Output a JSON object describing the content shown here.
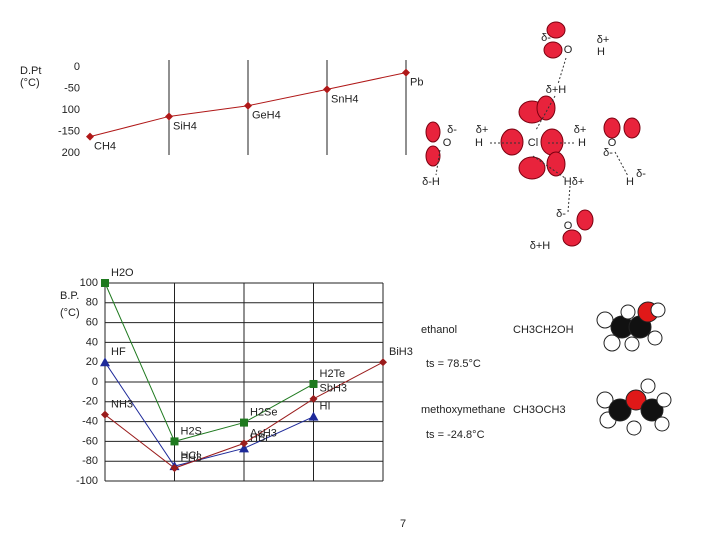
{
  "chart_data": [
    {
      "type": "line",
      "ylabel": [
        "D.Pt",
        "(°C)"
      ],
      "categories": [
        "CH4",
        "SiH4",
        "GeH4",
        "SnH4",
        "Pb"
      ],
      "values": [
        -162,
        -115,
        -90,
        -52,
        -13
      ],
      "color": "#b01818",
      "ylim": [
        -200,
        0
      ],
      "yticks": [
        0,
        -50,
        {
          "value": -100,
          "label": "100"
        },
        -150,
        {
          "value": -200,
          "label": "200"
        }
      ]
    },
    {
      "type": "line",
      "ylabel": [
        "B.P.",
        "(°C)"
      ],
      "categories": [
        null,
        null,
        null,
        null,
        null
      ],
      "series": [
        {
          "color": "#1f7a1f",
          "marker": "square",
          "values": [
            100,
            -60,
            -41,
            -2,
            null
          ],
          "labels": [
            "H2O",
            "H2S",
            "H2Se",
            "H2Te",
            null
          ]
        },
        {
          "color": "#1e2a9a",
          "marker": "triangle",
          "values": [
            20,
            -85,
            -67,
            -35,
            null
          ],
          "labels": [
            "HF",
            "HCl",
            "HBr",
            "HI",
            null
          ]
        },
        {
          "color": "#9a1c1c",
          "marker": "diamond",
          "values": [
            -33,
            -87,
            -62,
            -17,
            20
          ],
          "labels": [
            "NH3",
            "PH3",
            "AsH3",
            "SbH3",
            "BiH3"
          ]
        }
      ],
      "ylim": [
        -100,
        100
      ],
      "yticks": [
        100,
        80,
        60,
        40,
        20,
        0,
        -20,
        -40,
        -60,
        -80,
        -100
      ],
      "grid": true
    }
  ],
  "diagram": {
    "labels": [
      "δ-",
      "O",
      "δ+",
      "H",
      "δ+H",
      "δ-",
      "O",
      "δ+",
      "H",
      "Cl",
      "δ+",
      "H",
      "O",
      "δ-",
      "δ-",
      "H",
      "δ-H",
      "Hδ+",
      "δ-",
      "O",
      "δ+H"
    ]
  },
  "compounds": [
    {
      "name": "ethanol",
      "formula": "CH3CH2OH",
      "bp": "ts = 78.5°C"
    },
    {
      "name": "methoxymethane",
      "formula": "CH3OCH3",
      "bp": "ts = -24.8°C"
    }
  ],
  "page_number": "7"
}
